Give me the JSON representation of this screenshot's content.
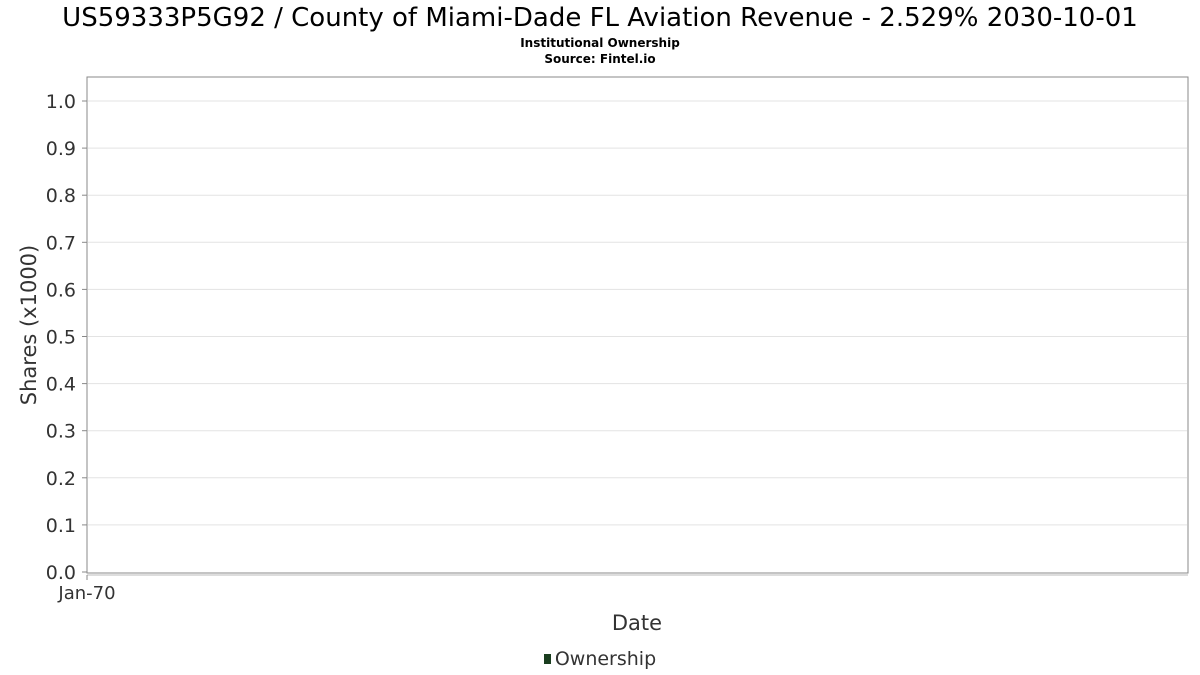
{
  "chart_data": {
    "type": "bar",
    "title": "US59333P5G92 / County of Miami-Dade FL Aviation Revenue - 2.529% 2030-10-01",
    "subtitle": "Institutional Ownership",
    "source": "Source: Fintel.io",
    "xlabel": "Date",
    "ylabel": "Shares (x1000)",
    "x_ticks": [
      "Jan-70"
    ],
    "y_ticks": [
      "0.0",
      "0.1",
      "0.2",
      "0.3",
      "0.4",
      "0.5",
      "0.6",
      "0.7",
      "0.8",
      "0.9",
      "1.0"
    ],
    "ylim": [
      0,
      1.05
    ],
    "grid": true,
    "legend_position": "bottom",
    "series": [
      {
        "name": "Ownership",
        "color": "#1a3d1f",
        "values": []
      }
    ]
  }
}
